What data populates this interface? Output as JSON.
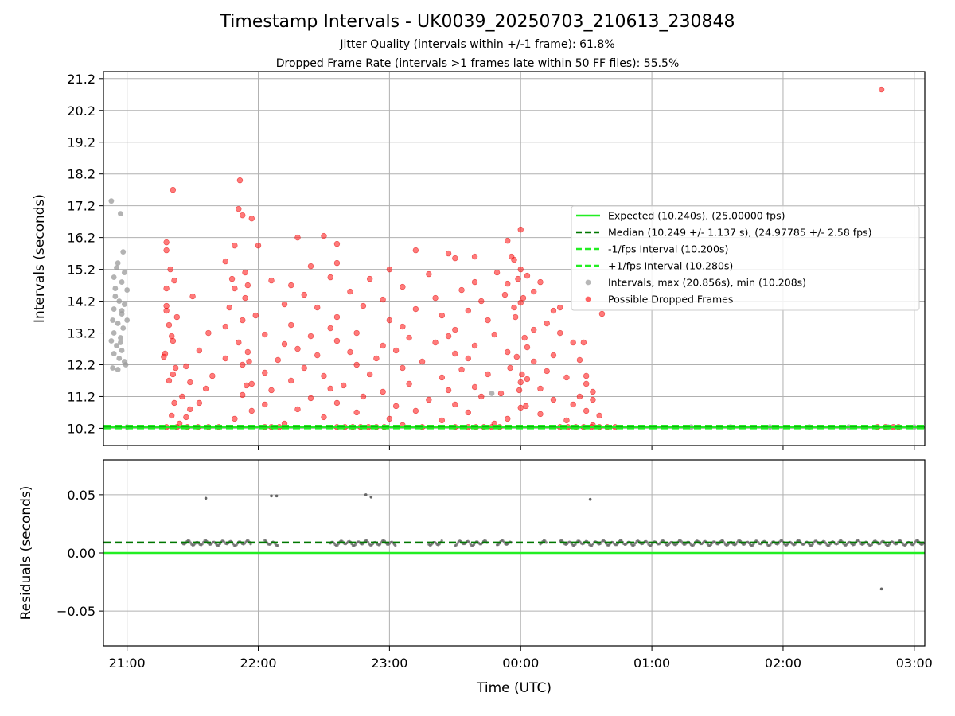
{
  "chart_data": [
    {
      "type": "scatter",
      "title": "Timestamp Intervals - UK0039_20250703_210613_230848",
      "subtitle_lines": [
        "Jitter Quality (intervals within +/-1 frame): 61.8%",
        "Dropped Frame Rate (intervals >1 frames late within 50 FF files): 55.5%"
      ],
      "xlabel": "",
      "ylabel": "Intervals (seconds)",
      "x_unit": "hours since 21:00 UTC",
      "xlim": [
        -0.18,
        6.08
      ],
      "ylim": [
        9.66,
        21.42
      ],
      "xticks": [
        0,
        1,
        2,
        3,
        4,
        5,
        6
      ],
      "xtick_labels": [
        "21:00",
        "22:00",
        "23:00",
        "00:00",
        "01:00",
        "02:00",
        "03:00"
      ],
      "yticks": [
        10.2,
        11.2,
        12.2,
        13.2,
        14.2,
        15.2,
        16.2,
        17.2,
        18.2,
        19.2,
        20.2,
        21.2
      ],
      "ytick_labels": [
        "10.2",
        "11.2",
        "12.2",
        "13.2",
        "14.2",
        "15.2",
        "16.2",
        "17.2",
        "18.2",
        "19.2",
        "20.2",
        "21.2"
      ],
      "grid": true,
      "legend_position": "center-right",
      "lines": [
        {
          "name": "Expected (10.240s), (25.00000 fps)",
          "y": 10.24,
          "color": "#22ee22",
          "style": "solid"
        },
        {
          "name": "Median (10.249 +/- 1.137 s), (24.97785 +/- 2.58 fps)",
          "y": 10.249,
          "color": "#007700",
          "style": "dashed"
        },
        {
          "name": "-1/fps Interval (10.200s)",
          "y": 10.2,
          "color": "#22ee22",
          "style": "dashed"
        },
        {
          "name": "+1/fps Interval (10.280s)",
          "y": 10.28,
          "color": "#22ee22",
          "style": "dashed"
        }
      ],
      "series": [
        {
          "name": "Intervals, max (20.856s), min (10.208s)",
          "color": "#999999",
          "max": 20.856,
          "min": 10.208
        },
        {
          "name": "Possible Dropped Frames",
          "color": "#ff2222"
        }
      ],
      "points_gray": [
        [
          -0.12,
          17.35
        ],
        [
          -0.05,
          16.95
        ],
        [
          -0.03,
          15.75
        ],
        [
          -0.08,
          15.25
        ],
        [
          -0.02,
          15.1
        ],
        [
          -0.1,
          14.95
        ],
        [
          -0.04,
          14.8
        ],
        [
          0.0,
          14.55
        ],
        [
          -0.09,
          14.35
        ],
        [
          -0.06,
          14.2
        ],
        [
          -0.02,
          14.1
        ],
        [
          -0.1,
          13.95
        ],
        [
          -0.04,
          13.8
        ],
        [
          -0.11,
          13.6
        ],
        [
          -0.07,
          13.5
        ],
        [
          -0.03,
          13.35
        ],
        [
          -0.1,
          13.2
        ],
        [
          -0.05,
          13.05
        ],
        [
          -0.12,
          12.95
        ],
        [
          -0.08,
          12.8
        ],
        [
          -0.04,
          12.65
        ],
        [
          -0.1,
          12.55
        ],
        [
          -0.06,
          12.4
        ],
        [
          -0.02,
          12.3
        ],
        [
          -0.11,
          12.1
        ],
        [
          -0.07,
          12.05
        ],
        [
          -0.04,
          13.9
        ],
        [
          0.0,
          13.6
        ],
        [
          -0.09,
          14.6
        ],
        [
          -0.05,
          12.9
        ],
        [
          -0.01,
          12.2
        ],
        [
          -0.07,
          15.4
        ],
        [
          2.78,
          11.3
        ],
        [
          0.0,
          10.24
        ],
        [
          4.3,
          10.24
        ],
        [
          4.6,
          10.24
        ],
        [
          4.9,
          10.24
        ],
        [
          5.2,
          10.24
        ],
        [
          5.5,
          10.24
        ],
        [
          5.8,
          10.24
        ],
        [
          6.0,
          10.24
        ]
      ],
      "points_red": [
        [
          0.35,
          17.7
        ],
        [
          5.75,
          20.856
        ],
        [
          0.86,
          18.0
        ],
        [
          0.85,
          17.1
        ],
        [
          0.88,
          16.9
        ],
        [
          0.95,
          16.8
        ],
        [
          3.0,
          16.45
        ],
        [
          1.3,
          16.2
        ],
        [
          1.5,
          16.25
        ],
        [
          2.9,
          16.1
        ],
        [
          0.3,
          16.05
        ],
        [
          0.82,
          15.95
        ],
        [
          1.0,
          15.95
        ],
        [
          2.2,
          15.8
        ],
        [
          2.45,
          15.7
        ],
        [
          2.93,
          15.6
        ],
        [
          2.5,
          15.55
        ],
        [
          0.75,
          15.45
        ],
        [
          1.4,
          15.3
        ],
        [
          1.6,
          15.4
        ],
        [
          2.0,
          15.2
        ],
        [
          2.82,
          15.1
        ],
        [
          3.05,
          15.0
        ],
        [
          0.8,
          14.9
        ],
        [
          1.1,
          14.85
        ],
        [
          1.55,
          14.95
        ],
        [
          1.85,
          14.9
        ],
        [
          2.65,
          14.8
        ],
        [
          2.9,
          14.75
        ],
        [
          3.15,
          14.8
        ],
        [
          0.3,
          14.6
        ],
        [
          0.82,
          14.6
        ],
        [
          1.25,
          14.7
        ],
        [
          1.7,
          14.5
        ],
        [
          2.1,
          14.65
        ],
        [
          2.55,
          14.55
        ],
        [
          2.88,
          14.4
        ],
        [
          3.1,
          14.5
        ],
        [
          0.5,
          14.35
        ],
        [
          0.9,
          14.3
        ],
        [
          1.35,
          14.4
        ],
        [
          1.95,
          14.25
        ],
        [
          2.35,
          14.3
        ],
        [
          2.7,
          14.2
        ],
        [
          3.0,
          14.15
        ],
        [
          0.3,
          14.05
        ],
        [
          0.78,
          14.0
        ],
        [
          1.2,
          14.1
        ],
        [
          1.45,
          14.0
        ],
        [
          1.8,
          14.05
        ],
        [
          2.2,
          13.95
        ],
        [
          2.6,
          13.9
        ],
        [
          2.95,
          14.0
        ],
        [
          3.25,
          13.9
        ],
        [
          0.38,
          13.7
        ],
        [
          0.98,
          13.75
        ],
        [
          1.6,
          13.7
        ],
        [
          2.0,
          13.6
        ],
        [
          2.4,
          13.75
        ],
        [
          2.75,
          13.6
        ],
        [
          3.2,
          13.5
        ],
        [
          0.32,
          13.45
        ],
        [
          0.75,
          13.4
        ],
        [
          1.25,
          13.45
        ],
        [
          1.55,
          13.35
        ],
        [
          2.1,
          13.4
        ],
        [
          2.5,
          13.3
        ],
        [
          3.1,
          13.3
        ],
        [
          0.62,
          13.2
        ],
        [
          1.05,
          13.15
        ],
        [
          1.4,
          13.1
        ],
        [
          1.75,
          13.2
        ],
        [
          2.15,
          13.05
        ],
        [
          2.45,
          13.1
        ],
        [
          2.8,
          13.15
        ],
        [
          3.3,
          13.2
        ],
        [
          0.35,
          12.95
        ],
        [
          0.85,
          12.9
        ],
        [
          1.2,
          12.85
        ],
        [
          1.6,
          12.95
        ],
        [
          1.95,
          12.8
        ],
        [
          2.35,
          12.9
        ],
        [
          2.65,
          12.8
        ],
        [
          3.05,
          12.75
        ],
        [
          3.4,
          12.9
        ],
        [
          0.55,
          12.65
        ],
        [
          0.92,
          12.6
        ],
        [
          1.3,
          12.7
        ],
        [
          1.7,
          12.6
        ],
        [
          2.05,
          12.65
        ],
        [
          2.5,
          12.55
        ],
        [
          2.9,
          12.6
        ],
        [
          3.25,
          12.5
        ],
        [
          0.28,
          12.45
        ],
        [
          0.75,
          12.4
        ],
        [
          1.15,
          12.35
        ],
        [
          1.45,
          12.5
        ],
        [
          1.9,
          12.4
        ],
        [
          2.25,
          12.3
        ],
        [
          2.6,
          12.4
        ],
        [
          3.1,
          12.3
        ],
        [
          3.45,
          12.35
        ],
        [
          0.45,
          12.15
        ],
        [
          0.88,
          12.2
        ],
        [
          1.35,
          12.1
        ],
        [
          1.75,
          12.2
        ],
        [
          2.1,
          12.1
        ],
        [
          2.55,
          12.05
        ],
        [
          2.92,
          12.1
        ],
        [
          3.2,
          12.0
        ],
        [
          0.35,
          11.9
        ],
        [
          0.65,
          11.85
        ],
        [
          1.05,
          11.95
        ],
        [
          1.5,
          11.85
        ],
        [
          1.85,
          11.9
        ],
        [
          2.4,
          11.8
        ],
        [
          2.75,
          11.9
        ],
        [
          3.05,
          11.75
        ],
        [
          3.35,
          11.8
        ],
        [
          0.48,
          11.65
        ],
        [
          0.95,
          11.6
        ],
        [
          1.25,
          11.7
        ],
        [
          1.65,
          11.55
        ],
        [
          2.15,
          11.6
        ],
        [
          2.65,
          11.5
        ],
        [
          3.0,
          11.65
        ],
        [
          3.5,
          11.6
        ],
        [
          0.6,
          11.45
        ],
        [
          1.1,
          11.4
        ],
        [
          1.55,
          11.45
        ],
        [
          1.95,
          11.35
        ],
        [
          2.45,
          11.4
        ],
        [
          2.85,
          11.3
        ],
        [
          3.15,
          11.45
        ],
        [
          3.55,
          11.35
        ],
        [
          0.42,
          11.2
        ],
        [
          0.88,
          11.25
        ],
        [
          1.4,
          11.15
        ],
        [
          1.8,
          11.2
        ],
        [
          2.3,
          11.1
        ],
        [
          2.7,
          11.2
        ],
        [
          3.25,
          11.1
        ],
        [
          3.45,
          11.2
        ],
        [
          0.55,
          11.0
        ],
        [
          1.05,
          10.95
        ],
        [
          1.6,
          11.0
        ],
        [
          2.05,
          10.9
        ],
        [
          2.5,
          10.95
        ],
        [
          3.0,
          10.85
        ],
        [
          3.4,
          10.95
        ],
        [
          0.48,
          10.8
        ],
        [
          0.95,
          10.75
        ],
        [
          1.3,
          10.8
        ],
        [
          1.75,
          10.7
        ],
        [
          2.2,
          10.75
        ],
        [
          2.6,
          10.7
        ],
        [
          3.15,
          10.65
        ],
        [
          3.5,
          10.75
        ],
        [
          0.45,
          10.55
        ],
        [
          0.82,
          10.5
        ],
        [
          1.5,
          10.55
        ],
        [
          2.0,
          10.5
        ],
        [
          2.4,
          10.45
        ],
        [
          2.9,
          10.5
        ],
        [
          3.35,
          10.45
        ],
        [
          0.4,
          10.35
        ],
        [
          1.2,
          10.35
        ],
        [
          2.1,
          10.3
        ],
        [
          2.8,
          10.35
        ],
        [
          3.55,
          10.3
        ],
        [
          0.3,
          15.8
        ],
        [
          0.33,
          15.2
        ],
        [
          0.36,
          14.85
        ],
        [
          0.3,
          13.9
        ],
        [
          0.34,
          13.1
        ],
        [
          0.29,
          12.55
        ],
        [
          0.37,
          12.1
        ],
        [
          0.32,
          11.7
        ],
        [
          0.36,
          11.0
        ],
        [
          0.34,
          10.6
        ],
        [
          2.95,
          15.5
        ],
        [
          3.0,
          15.2
        ],
        [
          2.98,
          14.9
        ],
        [
          3.02,
          14.3
        ],
        [
          2.96,
          13.7
        ],
        [
          3.03,
          13.05
        ],
        [
          2.97,
          12.45
        ],
        [
          3.01,
          11.9
        ],
        [
          2.99,
          11.4
        ],
        [
          3.04,
          10.9
        ],
        [
          0.9,
          15.1
        ],
        [
          0.92,
          14.7
        ],
        [
          0.88,
          13.6
        ],
        [
          0.93,
          12.3
        ],
        [
          0.91,
          11.55
        ],
        [
          1.6,
          16.0
        ],
        [
          2.3,
          15.05
        ],
        [
          2.65,
          15.6
        ],
        [
          3.3,
          14.0
        ],
        [
          3.48,
          12.9
        ],
        [
          3.5,
          11.85
        ],
        [
          3.55,
          11.1
        ],
        [
          3.6,
          10.6
        ],
        [
          3.62,
          13.8
        ],
        [
          0.3,
          10.24
        ],
        [
          0.38,
          10.24
        ],
        [
          0.46,
          10.24
        ],
        [
          0.54,
          10.24
        ],
        [
          0.62,
          10.24
        ],
        [
          0.7,
          10.24
        ],
        [
          1.05,
          10.24
        ],
        [
          1.1,
          10.24
        ],
        [
          1.16,
          10.24
        ],
        [
          1.6,
          10.24
        ],
        [
          1.66,
          10.24
        ],
        [
          1.72,
          10.24
        ],
        [
          1.78,
          10.24
        ],
        [
          1.84,
          10.24
        ],
        [
          1.9,
          10.24
        ],
        [
          1.96,
          10.24
        ],
        [
          2.25,
          10.24
        ],
        [
          2.5,
          10.24
        ],
        [
          2.6,
          10.24
        ],
        [
          2.66,
          10.24
        ],
        [
          2.72,
          10.24
        ],
        [
          2.78,
          10.24
        ],
        [
          2.84,
          10.24
        ],
        [
          3.3,
          10.24
        ],
        [
          3.36,
          10.24
        ],
        [
          3.42,
          10.24
        ],
        [
          3.48,
          10.24
        ],
        [
          3.54,
          10.24
        ],
        [
          3.6,
          10.24
        ],
        [
          3.66,
          10.24
        ],
        [
          3.72,
          10.24
        ],
        [
          5.72,
          10.24
        ],
        [
          5.78,
          10.24
        ],
        [
          5.84,
          10.24
        ],
        [
          5.88,
          10.24
        ]
      ]
    },
    {
      "type": "scatter",
      "xlabel": "Time (UTC)",
      "ylabel": "Residuals (seconds)",
      "x_unit": "hours since 21:00 UTC",
      "xlim": [
        -0.18,
        6.08
      ],
      "ylim": [
        -0.08,
        0.08
      ],
      "xticks": [
        0,
        1,
        2,
        3,
        4,
        5,
        6
      ],
      "xtick_labels": [
        "21:00",
        "22:00",
        "23:00",
        "00:00",
        "01:00",
        "02:00",
        "03:00"
      ],
      "yticks": [
        -0.05,
        0.0,
        0.05
      ],
      "ytick_labels": [
        "−0.05",
        "0.00",
        "0.05"
      ],
      "grid": true,
      "lines": [
        {
          "y": 0.0,
          "color": "#22ee22",
          "style": "solid"
        },
        {
          "y": 0.009,
          "color": "#007700",
          "style": "dashed"
        }
      ],
      "outliers": [
        [
          0.6,
          0.047
        ],
        [
          1.1,
          0.049
        ],
        [
          1.14,
          0.049
        ],
        [
          1.82,
          0.05
        ],
        [
          1.86,
          0.048
        ],
        [
          3.53,
          0.046
        ],
        [
          5.75,
          -0.031
        ]
      ],
      "band_segments": [
        [
          0.42,
          0.95
        ],
        [
          1.05,
          1.15
        ],
        [
          1.55,
          2.05
        ],
        [
          2.3,
          2.4
        ],
        [
          2.5,
          2.75
        ],
        [
          2.82,
          2.93
        ],
        [
          3.15,
          3.2
        ],
        [
          3.3,
          6.08
        ]
      ],
      "band_center": 0.0085,
      "band_spread": 0.0016,
      "band_step": 0.009
    }
  ]
}
